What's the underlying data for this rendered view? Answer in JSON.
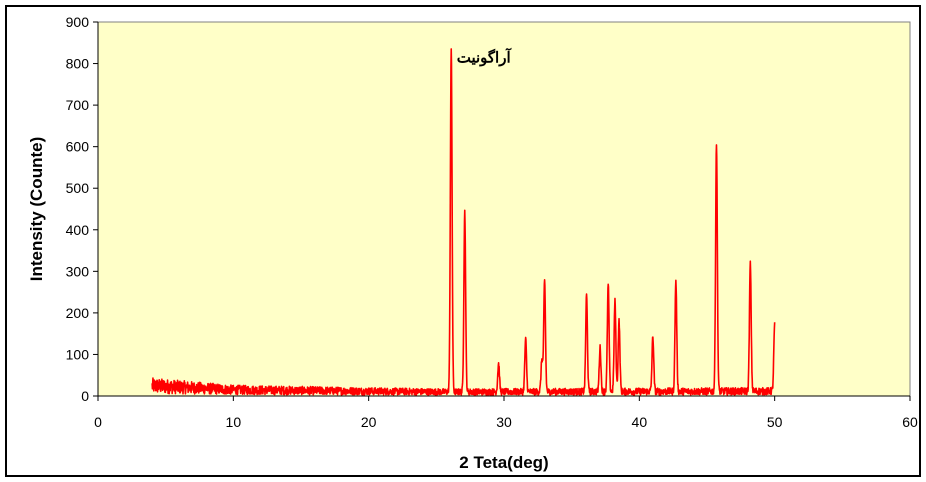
{
  "chart_data": {
    "type": "line",
    "title": "",
    "xlabel": "2 Teta(deg)",
    "ylabel": "Intensity (Counte)",
    "xlim": [
      0,
      60
    ],
    "ylim": [
      0,
      900
    ],
    "x_ticks": [
      0,
      10,
      20,
      30,
      40,
      50,
      60
    ],
    "y_ticks": [
      0,
      100,
      200,
      300,
      400,
      500,
      600,
      700,
      800,
      900
    ],
    "grid": false,
    "legend": "none",
    "annotations": [
      {
        "text": "آراگونیت",
        "x": 28.5,
        "y": 815
      }
    ],
    "series": [
      {
        "color": "#ff0000",
        "baseline": {
          "x_start": 4,
          "x_end": 50,
          "levels": [
            [
              4,
              30
            ],
            [
              10,
              18
            ],
            [
              20,
              14
            ],
            [
              26,
              12
            ],
            [
              50,
              14
            ]
          ]
        },
        "peaks": [
          {
            "x": 26.1,
            "y": 835
          },
          {
            "x": 27.1,
            "y": 445
          },
          {
            "x": 29.6,
            "y": 80
          },
          {
            "x": 31.6,
            "y": 138
          },
          {
            "x": 32.8,
            "y": 90
          },
          {
            "x": 33.0,
            "y": 278
          },
          {
            "x": 36.1,
            "y": 245
          },
          {
            "x": 37.1,
            "y": 118
          },
          {
            "x": 37.7,
            "y": 270
          },
          {
            "x": 38.2,
            "y": 230
          },
          {
            "x": 38.5,
            "y": 182
          },
          {
            "x": 41.0,
            "y": 145
          },
          {
            "x": 42.7,
            "y": 280
          },
          {
            "x": 45.7,
            "y": 612
          },
          {
            "x": 48.2,
            "y": 320
          },
          {
            "x": 50.0,
            "y": 172
          }
        ]
      }
    ]
  },
  "colors": {
    "plot_background": "#ffffc8",
    "line": "#ff0000",
    "frame": "#000000"
  }
}
